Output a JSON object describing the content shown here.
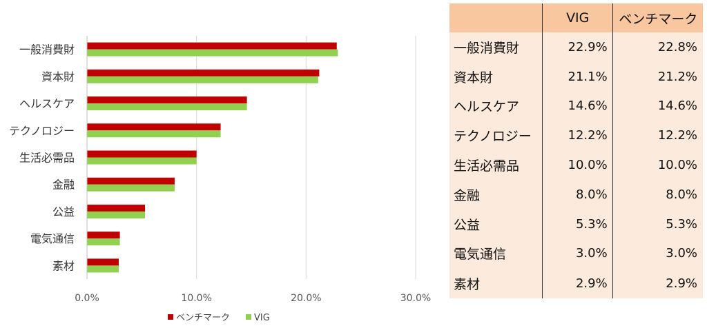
{
  "chart_data": {
    "type": "bar",
    "orientation": "horizontal",
    "categories": [
      "一般消費財",
      "資本財",
      "ヘルスケア",
      "テクノロジー",
      "生活必需品",
      "金融",
      "公益",
      "電気通信",
      "素材"
    ],
    "series": [
      {
        "name": "ベンチマーク",
        "color": "#c00000",
        "values": [
          22.8,
          21.2,
          14.6,
          12.2,
          10.0,
          8.0,
          5.3,
          3.0,
          2.9
        ]
      },
      {
        "name": "VIG",
        "color": "#92d050",
        "values": [
          22.9,
          21.1,
          14.6,
          12.2,
          10.0,
          8.0,
          5.3,
          3.0,
          2.9
        ]
      }
    ],
    "xlim": [
      0,
      30
    ],
    "x_ticks": [
      0,
      10,
      20,
      30
    ],
    "x_tick_labels": [
      "0.0%",
      "10.0%",
      "20.0%",
      "30.0%"
    ],
    "grid": true,
    "legend_position": "bottom"
  },
  "table": {
    "headers": [
      "",
      "VIG",
      "ベンチマーク"
    ],
    "rows": [
      [
        "一般消費財",
        "22.9%",
        "22.8%"
      ],
      [
        "資本財",
        "21.1%",
        "21.2%"
      ],
      [
        "ヘルスケア",
        "14.6%",
        "14.6%"
      ],
      [
        "テクノロジー",
        "12.2%",
        "12.2%"
      ],
      [
        "生活必需品",
        "10.0%",
        "10.0%"
      ],
      [
        "金融",
        "8.0%",
        "8.0%"
      ],
      [
        "公益",
        "5.3%",
        "5.3%"
      ],
      [
        "電気通信",
        "3.0%",
        "3.0%"
      ],
      [
        "素材",
        "2.9%",
        "2.9%"
      ]
    ]
  }
}
